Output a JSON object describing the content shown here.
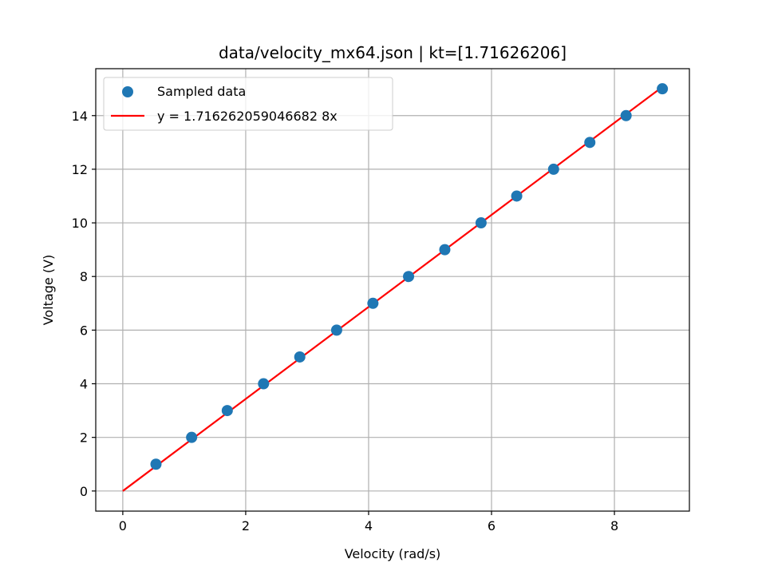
{
  "chart_data": {
    "type": "scatter",
    "title": "data/velocity_mx64.json | kt=[1.71626206]",
    "xlabel": "Velocity (rad/s)",
    "ylabel": "Voltage (V)",
    "xlim": [
      -0.44,
      9.22
    ],
    "ylim": [
      -0.75,
      15.75
    ],
    "grid": true,
    "x_ticks": [
      0,
      2,
      4,
      6,
      8
    ],
    "y_ticks": [
      0,
      2,
      4,
      6,
      8,
      10,
      12,
      14
    ],
    "x_tick_labels": [
      "0",
      "2",
      "4",
      "6",
      "8"
    ],
    "y_tick_labels": [
      "0",
      "2",
      "4",
      "6",
      "8",
      "10",
      "12",
      "14"
    ],
    "series": [
      {
        "name": "Sampled data",
        "kind": "scatter",
        "color": "#1f77b4",
        "x": [
          0.54,
          1.12,
          1.7,
          2.29,
          2.88,
          3.48,
          4.07,
          4.65,
          5.24,
          5.83,
          6.41,
          7.01,
          7.6,
          8.19,
          8.78
        ],
        "y": [
          1,
          2,
          3,
          4,
          5,
          6,
          7,
          8,
          9,
          10,
          11,
          12,
          13,
          14,
          15
        ]
      },
      {
        "name": "y = 1.716262059046682 8x",
        "kind": "line",
        "color": "#ff0000",
        "slope": 1.716262059046682,
        "x": [
          0,
          8.78
        ],
        "y": [
          0,
          15.07
        ]
      }
    ],
    "legend": {
      "location": "upper-left",
      "entries": [
        "Sampled data",
        "y = 1.716262059046682 8x"
      ]
    }
  }
}
